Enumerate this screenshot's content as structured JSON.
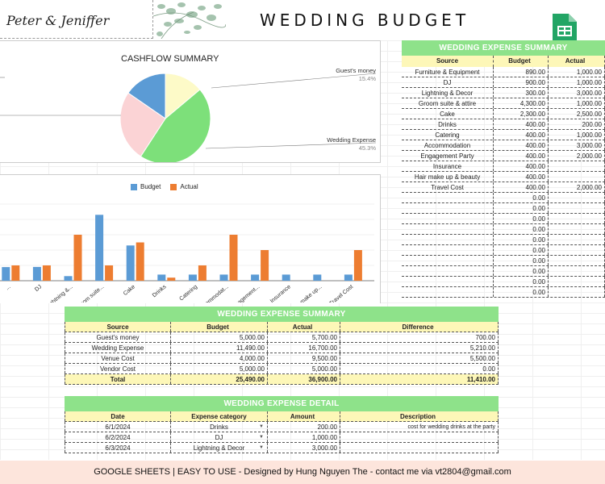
{
  "header": {
    "couple": "Peter & Jeniffer",
    "title": "WEDDING BUDGET"
  },
  "cashflow": {
    "title": "CASHFLOW SUMMARY",
    "labels": [
      {
        "name": "Guest's money",
        "pct": "15.4%"
      },
      {
        "name": "Wedding Expense",
        "pct": "45.3%"
      }
    ]
  },
  "chart_data": [
    {
      "type": "pie",
      "title": "CASHFLOW SUMMARY",
      "slices": [
        {
          "label": "Guest's money",
          "value": 15.4,
          "color": "#5b9bd5"
        },
        {
          "label": "",
          "value": 13.9,
          "color": "#fdfac8"
        },
        {
          "label": "Wedding Expense",
          "value": 45.3,
          "color": "#7de07a"
        },
        {
          "label": "",
          "value": 25.4,
          "color": "#fbd3d5"
        }
      ]
    },
    {
      "type": "bar",
      "categories": [
        "Furniture & Equipment",
        "DJ",
        "Lightning & Decor",
        "Groom suite & attire",
        "Cake",
        "Drinks",
        "Catering",
        "Accommodation",
        "Engagement Party",
        "Insurance",
        "Hair make up & beauty",
        "Travel Cost"
      ],
      "tick_labels": [
        "...",
        "DJ",
        "Lightning &...",
        "Groom suite...",
        "Cake",
        "Drinks",
        "Catering",
        "Accommodat...",
        "Engagement...",
        "Insurance",
        "Hair make up...",
        "Travel Cost"
      ],
      "series": [
        {
          "name": "Budget",
          "color": "#5b9bd5",
          "values": [
            890,
            900,
            300,
            4300,
            2300,
            400,
            400,
            400,
            400,
            400,
            400,
            400
          ]
        },
        {
          "name": "Actual",
          "color": "#ed7d31",
          "values": [
            1000,
            1000,
            3000,
            1000,
            2500,
            200,
            1000,
            3000,
            2000,
            0,
            0,
            2000
          ]
        }
      ],
      "ylim": [
        0,
        5000
      ]
    }
  ],
  "expense_summary": {
    "title": "WEDDING EXPENSE SUMMARY",
    "headers": [
      "Source",
      "Budget",
      "Actual"
    ],
    "rows": [
      [
        "Furniture & Equipment",
        "890.00",
        "1,000.00"
      ],
      [
        "DJ",
        "900.00",
        "1,000.00"
      ],
      [
        "Lightning & Decor",
        "300.00",
        "3,000.00"
      ],
      [
        "Groom suite & attire",
        "4,300.00",
        "1,000.00"
      ],
      [
        "Cake",
        "2,300.00",
        "2,500.00"
      ],
      [
        "Drinks",
        "400.00",
        "200.00"
      ],
      [
        "Catering",
        "400.00",
        "1,000.00"
      ],
      [
        "Accommodation",
        "400.00",
        "3,000.00"
      ],
      [
        "Engagement Party",
        "400.00",
        "2,000.00"
      ],
      [
        "Insurance",
        "400.00",
        ""
      ],
      [
        "Hair make up & beauty",
        "400.00",
        ""
      ],
      [
        "Travel Cost",
        "400.00",
        "2,000.00"
      ],
      [
        "",
        "0.00",
        ""
      ],
      [
        "",
        "0.00",
        ""
      ],
      [
        "",
        "0.00",
        ""
      ],
      [
        "",
        "0.00",
        ""
      ],
      [
        "",
        "0.00",
        ""
      ],
      [
        "",
        "0.00",
        ""
      ],
      [
        "",
        "0.00",
        ""
      ],
      [
        "",
        "0.00",
        ""
      ],
      [
        "",
        "0.00",
        ""
      ],
      [
        "",
        "0.00",
        ""
      ]
    ]
  },
  "summary": {
    "title": "WEDDING EXPENSE SUMMARY",
    "headers": [
      "Source",
      "Budget",
      "Actual",
      "Difference"
    ],
    "rows": [
      [
        "Guest's money",
        "5,000.00",
        "5,700.00",
        "700.00"
      ],
      [
        "Wedding Expense",
        "11,490.00",
        "16,700.00",
        "5,210.00"
      ],
      [
        "Venue Cost",
        "4,000.00",
        "9,500.00",
        "5,500.00"
      ],
      [
        "Vendor Cost",
        "5,000.00",
        "5,000.00",
        "0.00"
      ]
    ],
    "total": [
      "Total",
      "25,490.00",
      "36,900.00",
      "11,410.00"
    ]
  },
  "detail": {
    "title": "WEDDING EXPENSE DETAIL",
    "headers": [
      "Date",
      "Expense category",
      "Amount",
      "Description"
    ],
    "rows": [
      [
        "6/1/2024",
        "Drinks",
        "200.00",
        "cost for wedding drinks at the party"
      ],
      [
        "6/2/2024",
        "DJ",
        "1,000.00",
        ""
      ],
      [
        "6/3/2024",
        "Lightning & Decor",
        "3,000.00",
        ""
      ]
    ]
  },
  "footer": {
    "text": "GOOGLE SHEETS | EASY TO USE - Designed by Hung Nguyen The - contact me via vt2804@gmail.com"
  },
  "colors": {
    "green_header": "#8ee28a",
    "yellow_header": "#fdf7b8",
    "budget": "#5b9bd5",
    "actual": "#ed7d31",
    "footer_bg": "#fde5dc"
  }
}
